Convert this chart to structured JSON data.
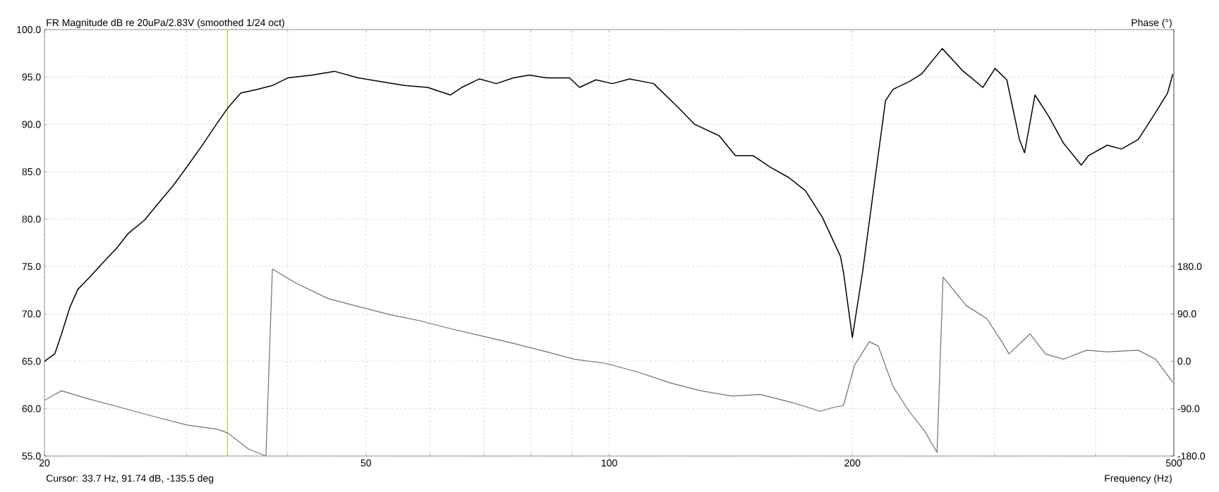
{
  "chart_data": {
    "type": "line",
    "ylabel": "FR Magnitude dB re 20uPa/2.83V (smoothed 1/24 oct)",
    "y2label": "Phase (°)",
    "xlabel": "Frequency (Hz)",
    "annotations": [
      "Cursor: 33.7 Hz, 91.74 dB, -135.5 deg"
    ],
    "log": "x",
    "grid": true,
    "xlim": [
      20,
      500
    ],
    "ylim": [
      55,
      100
    ],
    "y2lim": [
      -180,
      630
    ],
    "xticks": [
      20,
      {
        "value": 30,
        "label": null
      },
      {
        "value": 40,
        "label": null
      },
      50,
      {
        "value": 60,
        "label": null
      },
      {
        "value": 70,
        "label": null
      },
      {
        "value": 80,
        "label": null
      },
      {
        "value": 90,
        "label": null
      },
      100,
      200,
      {
        "value": 300,
        "label": null
      },
      {
        "value": 400,
        "label": null
      },
      500
    ],
    "yticks": [
      {
        "value": 55,
        "label": "55.0"
      },
      {
        "value": 60,
        "label": "60.0"
      },
      {
        "value": 65,
        "label": "65.0"
      },
      {
        "value": 70,
        "label": "70.0"
      },
      {
        "value": 75,
        "label": "75.0"
      },
      {
        "value": 80,
        "label": "80.0"
      },
      {
        "value": 85,
        "label": "85.0"
      },
      {
        "value": 90,
        "label": "90.0"
      },
      {
        "value": 95,
        "label": "95.0"
      },
      {
        "value": 100,
        "label": "100.0"
      }
    ],
    "y2ticks": [
      {
        "value": -180,
        "label": "-180.0"
      },
      {
        "value": -90,
        "label": "-90.0"
      },
      {
        "value": 0,
        "label": "0.0"
      },
      {
        "value": 90,
        "label": "90.0"
      },
      {
        "value": 180,
        "label": "180.0"
      }
    ],
    "ref_lines": [
      {
        "axis": "x",
        "value": 33.7,
        "color": "#d9b300"
      }
    ],
    "series": [
      {
        "color": "#000000",
        "x": [
          20,
          20.6,
          21.0,
          21.5,
          22.0,
          22.7,
          23.5,
          24.6,
          25.4,
          26.6,
          27.5,
          28.9,
          30.0,
          31.3,
          32.7,
          33.7,
          35.0,
          36.7,
          38.3,
          40.0,
          42.9,
          45.7,
          48.9,
          52.3,
          55.8,
          59.6,
          63.6,
          65.7,
          69.1,
          72.5,
          76.1,
          79.7,
          83.7,
          89.3,
          91.9,
          96.3,
          100.9,
          106.0,
          113.5,
          121.7,
          127.6,
          136.8,
          143.3,
          150.8,
          158.1,
          166.8,
          175.0,
          183.6,
          193.3,
          195.0,
          200,
          205.9,
          212.7,
          219.8,
          224.6,
          235.1,
          243.5,
          258.4,
          273.6,
          290.1,
          300.4,
          310.6,
          322.0,
          326.7,
          336.6,
          350.3,
          365.2,
          384.1,
          392.1,
          413.4,
          430.8,
          451.7,
          471.0,
          491.1,
          498.5
        ],
        "values": [
          65.0,
          65.8,
          67.9,
          70.7,
          72.6,
          73.8,
          75.2,
          77.0,
          78.5,
          79.9,
          81.4,
          83.6,
          85.5,
          87.7,
          90.1,
          91.7,
          93.3,
          93.7,
          94.1,
          94.9,
          95.2,
          95.6,
          94.9,
          94.5,
          94.1,
          93.9,
          93.1,
          93.9,
          94.8,
          94.3,
          94.9,
          95.2,
          94.9,
          94.9,
          93.9,
          94.7,
          94.3,
          94.8,
          94.3,
          91.8,
          90.0,
          88.8,
          86.7,
          86.7,
          85.5,
          84.4,
          83.0,
          80.2,
          76.1,
          74.4,
          67.5,
          74.4,
          83.4,
          92.5,
          93.7,
          94.5,
          95.3,
          98.0,
          95.7,
          93.9,
          95.9,
          94.7,
          88.4,
          87.0,
          93.1,
          90.8,
          88.0,
          85.7,
          86.7,
          87.8,
          87.4,
          88.4,
          90.8,
          93.3,
          95.3
        ]
      },
      {
        "color": "#707070",
        "axis": "y2",
        "x": [
          20,
          21.0,
          22.5,
          24.6,
          27.5,
          30.0,
          32.7,
          33.7,
          35.8,
          37.6,
          38.3,
          41.0,
          44.9,
          48.9,
          53.4,
          58.3,
          63.6,
          69.1,
          76.1,
          83.7,
          90.5,
          99.0,
          108.8,
          118.9,
          129.9,
          141.8,
          153.8,
          168.1,
          182.5,
          189.1,
          195.0,
          201.3,
          209.9,
          215.3,
          224.6,
          235.1,
          245.6,
          254.6,
          259.0,
          276.6,
          293.4,
          306.6,
          312.6,
          331.8,
          346.8,
          365.2,
          390.0,
          413.4,
          451.7,
          474.6,
          498.5
        ],
        "values": [
          -74,
          -56,
          -70,
          -86,
          -106,
          -121,
          -129,
          -136,
          -167,
          -180,
          175,
          148,
          119,
          104,
          89,
          77,
          62,
          49,
          34,
          18,
          4,
          -4,
          -21,
          -41,
          -56,
          -66,
          -63,
          -78,
          -95,
          -88,
          -84,
          -7,
          37,
          29,
          -48,
          -95,
          -132,
          -173,
          160,
          106,
          81,
          36,
          14,
          52,
          14,
          4,
          21,
          18,
          21,
          4,
          -40
        ]
      }
    ]
  }
}
